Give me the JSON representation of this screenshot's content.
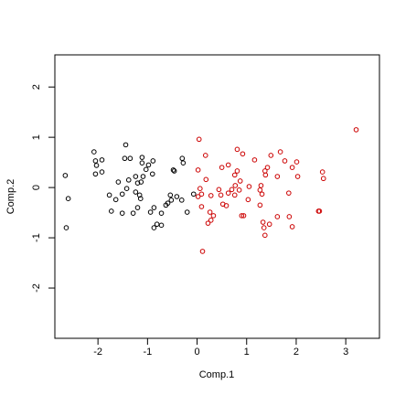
{
  "chart_data": {
    "type": "scatter",
    "x_label": "Comp.1",
    "y_label": "Comp.2",
    "xlim": [
      -2.87,
      3.68
    ],
    "ylim": [
      -3.0,
      2.64
    ],
    "xticks": [
      -2,
      -1,
      0,
      1,
      2,
      3
    ],
    "yticks": [
      -2,
      -1,
      0,
      1,
      2
    ],
    "series": [
      {
        "color": "#000000",
        "x": [
          -2.66,
          -2.6,
          -2.64,
          -2.08,
          -2.05,
          -2.03,
          -1.92,
          -2.05,
          -1.92,
          -1.44,
          -1.46,
          -1.35,
          -1.11,
          -1.64,
          -1.73,
          -1.51,
          -1.59,
          -1.38,
          -1.42,
          -1.24,
          -1.2,
          -1.24,
          -1.16,
          -1.13,
          -1.09,
          -1.03,
          -0.98,
          -0.89,
          -0.9,
          -1.11,
          -0.94,
          -1.2,
          -1.14,
          -1.29,
          -0.87,
          -0.81,
          -0.72,
          -0.72,
          -0.87,
          -0.59,
          -0.63,
          -0.52,
          -0.48,
          -0.46,
          -0.41,
          -0.31,
          -0.2,
          -0.3,
          -0.28,
          -0.07,
          -0.54,
          -1.77,
          -1.51
        ],
        "values": [
          0.24,
          -0.22,
          -0.8,
          0.71,
          0.53,
          0.44,
          0.55,
          0.27,
          0.31,
          0.85,
          0.58,
          0.58,
          0.6,
          -0.24,
          -0.47,
          -0.51,
          0.11,
          0.15,
          -0.02,
          0.22,
          0.09,
          -0.09,
          -0.15,
          0.11,
          0.22,
          0.36,
          0.45,
          0.53,
          0.27,
          0.49,
          -0.49,
          -0.4,
          -0.22,
          -0.51,
          -0.4,
          -0.73,
          -0.51,
          -0.75,
          -0.8,
          -0.31,
          -0.35,
          -0.25,
          0.35,
          0.33,
          -0.18,
          -0.25,
          -0.49,
          0.58,
          0.49,
          -0.13,
          -0.15,
          -0.15,
          -0.13
        ]
      },
      {
        "color": "#cc0000",
        "x": [
          0.04,
          0.02,
          0.06,
          0.02,
          0.09,
          0.09,
          0.11,
          0.17,
          0.18,
          0.22,
          0.28,
          0.33,
          0.44,
          0.5,
          0.48,
          0.52,
          0.59,
          0.63,
          0.63,
          0.76,
          0.7,
          0.76,
          0.81,
          0.77,
          0.85,
          0.81,
          0.87,
          0.92,
          0.9,
          0.94,
          1.03,
          1.16,
          1.29,
          1.27,
          1.31,
          1.27,
          1.33,
          1.35,
          1.38,
          1.37,
          1.42,
          1.37,
          1.49,
          1.46,
          1.62,
          1.62,
          1.68,
          1.77,
          1.92,
          1.85,
          1.86,
          1.92,
          2.01,
          2.03,
          2.53,
          2.55,
          2.47,
          2.45,
          3.21,
          0.26,
          1.05,
          0.28
        ],
        "values": [
          0.96,
          0.35,
          -0.02,
          -0.18,
          -0.13,
          -0.38,
          -1.27,
          0.64,
          0.16,
          -0.71,
          -0.65,
          -0.56,
          -0.04,
          0.4,
          -0.15,
          -0.33,
          -0.36,
          -0.11,
          0.45,
          0.25,
          -0.04,
          -0.15,
          0.76,
          0.04,
          -0.05,
          0.33,
          0.13,
          0.67,
          -0.56,
          -0.56,
          -0.24,
          0.55,
          0.04,
          -0.05,
          -0.13,
          -0.35,
          -0.69,
          -0.8,
          0.25,
          0.33,
          0.4,
          -0.95,
          0.64,
          -0.73,
          0.22,
          -0.58,
          0.71,
          0.53,
          0.4,
          -0.11,
          -0.58,
          -0.78,
          0.51,
          0.22,
          0.31,
          0.18,
          -0.47,
          -0.47,
          1.15,
          -0.49,
          0.02,
          -0.16
        ]
      }
    ]
  }
}
